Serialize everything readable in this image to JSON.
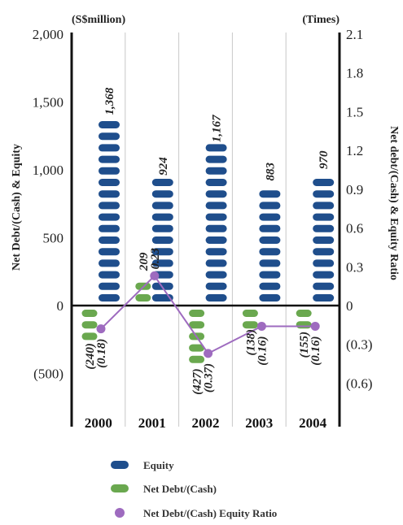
{
  "chart_data": {
    "type": "bar",
    "categories": [
      "2000",
      "2001",
      "2002",
      "2003",
      "2004"
    ],
    "series": [
      {
        "name": "Equity",
        "values": [
          1368,
          924,
          1167,
          883,
          970
        ],
        "labels": [
          "1,368",
          "924",
          "1,167",
          "883",
          "970"
        ],
        "axis": "left",
        "color": "#1f4e8c"
      },
      {
        "name": "Net Debt/(Cash)",
        "values": [
          -240,
          209,
          -427,
          -138,
          -155
        ],
        "labels": [
          "(240)",
          "209",
          "(427)",
          "(138)",
          "(155)"
        ],
        "axis": "left",
        "color": "#6aa84f"
      },
      {
        "name": "Net Debt/(Cash) Equity Ratio",
        "type": "line",
        "values": [
          -0.18,
          0.23,
          -0.37,
          -0.16,
          -0.16
        ],
        "labels": [
          "(0.18)",
          "0.23",
          "(0.37)",
          "(0.16)",
          "(0.16)"
        ],
        "axis": "right",
        "color": "#9e6bbf"
      }
    ],
    "y_left": {
      "unit": "(S$million)",
      "label": "Net Debt/(Cash) & Equity",
      "ylim": [
        -500,
        2000
      ],
      "ticks": [
        2000,
        1500,
        1000,
        500,
        0,
        -500
      ],
      "tick_labels": [
        "2,000",
        "1,500",
        "1,000",
        "500",
        "0",
        "(500)"
      ]
    },
    "y_right": {
      "unit": "(Times)",
      "label": "Net debt/(Cash) & Equity Ratio",
      "ylim": [
        -0.6,
        2.1
      ],
      "ticks": [
        2.1,
        1.8,
        1.5,
        1.2,
        0.9,
        0.6,
        0.3,
        0,
        -0.3,
        -0.6
      ],
      "tick_labels": [
        "2.1",
        "1.8",
        "1.5",
        "1.2",
        "0.9",
        "0.6",
        "0.3",
        "0",
        "(0.3)",
        "(0.6)"
      ]
    },
    "legend": [
      {
        "label": "Equity",
        "marker": "pill",
        "color": "#1f4e8c"
      },
      {
        "label": "Net Debt/(Cash)",
        "marker": "pill",
        "color": "#6aa84f"
      },
      {
        "label": "Net Debt/(Cash) Equity Ratio",
        "marker": "dot",
        "color": "#9e6bbf"
      }
    ],
    "legend_position": "bottom-center",
    "grid": false
  }
}
